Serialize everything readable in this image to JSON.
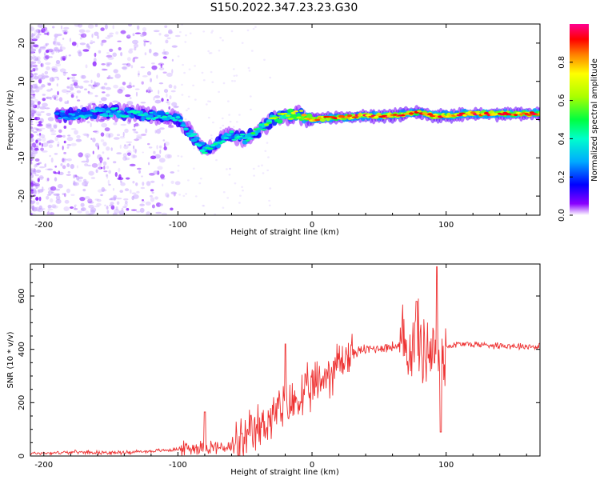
{
  "title": "S150.2022.347.23.23.G30",
  "chart_data": [
    {
      "type": "heatmap",
      "title": "",
      "xlabel": "Height of straight line (km)",
      "ylabel": "Frequency (Hz)",
      "xlim": [
        -210,
        170
      ],
      "ylim": [
        -25,
        25
      ],
      "xticks": [
        -200,
        -100,
        0,
        100
      ],
      "yticks": [
        20,
        10,
        0,
        -10,
        -20
      ],
      "colorbar": {
        "label": "Normalized spectral amplitude",
        "range": [
          0.0,
          1.0
        ],
        "ticks": [
          "0.0",
          "0.2",
          "0.4",
          "0.6",
          "0.8"
        ],
        "tick_values": [
          0.0,
          0.2,
          0.4,
          0.6,
          0.8
        ],
        "colormap": [
          "#ffffff",
          "#7a00ff",
          "#0000ff",
          "#00c8ff",
          "#00ff80",
          "#80ff00",
          "#ffff00",
          "#ff8000",
          "#ff0000",
          "#ff0080"
        ]
      },
      "ridge": {
        "x": [
          -190,
          -170,
          -150,
          -130,
          -110,
          -100,
          -90,
          -80,
          -70,
          -60,
          -50,
          -40,
          -30,
          -20,
          -10,
          0,
          10,
          20,
          40,
          60,
          80,
          90,
          100,
          120,
          140,
          170
        ],
        "freq": [
          1,
          1.5,
          2,
          1.5,
          1,
          0,
          -4,
          -8,
          -6,
          -4,
          -5,
          -3,
          0,
          1,
          1.5,
          0,
          0.5,
          0.5,
          1,
          1,
          2,
          1,
          1,
          1.5,
          1.5,
          1.5
        ],
        "amp": [
          0.3,
          0.35,
          0.4,
          0.4,
          0.4,
          0.35,
          0.4,
          0.45,
          0.4,
          0.4,
          0.45,
          0.5,
          0.6,
          0.65,
          0.7,
          0.85,
          0.85,
          0.85,
          0.9,
          0.9,
          0.85,
          0.9,
          0.9,
          0.9,
          0.9,
          0.9
        ]
      }
    },
    {
      "type": "line",
      "title": "",
      "xlabel": "Height of straight line (km)",
      "ylabel": "SNR (10 * v/v)",
      "xlim": [
        -210,
        170
      ],
      "ylim": [
        0,
        720
      ],
      "xticks": [
        -200,
        -100,
        0,
        100
      ],
      "yticks": [
        0,
        200,
        400,
        600
      ],
      "color": "#ee3333",
      "trend": {
        "x": [
          -210,
          -170,
          -150,
          -120,
          -100,
          -80,
          -60,
          -50,
          -40,
          -30,
          -20,
          -10,
          0,
          10,
          20,
          30,
          40,
          60,
          80,
          90,
          95,
          100,
          110,
          140,
          170
        ],
        "y": [
          10,
          15,
          12,
          18,
          25,
          35,
          30,
          50,
          100,
          150,
          180,
          210,
          250,
          300,
          350,
          385,
          400,
          410,
          410,
          400,
          380,
          410,
          420,
          415,
          410
        ]
      },
      "peaks": [
        {
          "x": -80,
          "y": 165
        },
        {
          "x": -20,
          "y": 420
        },
        {
          "x": 78,
          "y": 580
        },
        {
          "x": 93,
          "y": 710
        },
        {
          "x": 96,
          "y": 90
        }
      ]
    }
  ]
}
